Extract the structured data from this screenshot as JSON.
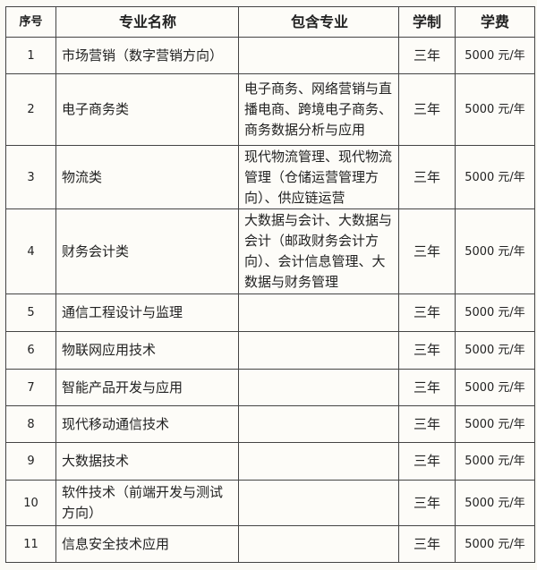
{
  "headers": [
    "序号",
    "专业名称",
    "包含专业",
    "学制",
    "学费"
  ],
  "rows": [
    {
      "no": "1",
      "name": "市场营销（数字营销方向）",
      "includes": "",
      "duration": "三年",
      "fee": "5000 元/年"
    },
    {
      "no": "2",
      "name": "电子商务类",
      "includes": "电子商务、网络营销与直播电商、跨境电子商务、商务数据分析与应用",
      "duration": "三年",
      "fee": "5000 元/年"
    },
    {
      "no": "3",
      "name": "物流类",
      "includes": "现代物流管理、现代物流管理（仓储运营管理方向）、供应链运营",
      "duration": "三年",
      "fee": "5000 元/年"
    },
    {
      "no": "4",
      "name": "财务会计类",
      "includes": "大数据与会计、大数据与会计（邮政财务会计方向）、会计信息管理、大数据与财务管理",
      "duration": "三年",
      "fee": "5000 元/年"
    },
    {
      "no": "5",
      "name": "通信工程设计与监理",
      "includes": "",
      "duration": "三年",
      "fee": "5000 元/年"
    },
    {
      "no": "6",
      "name": "物联网应用技术",
      "includes": "",
      "duration": "三年",
      "fee": "5000 元/年"
    },
    {
      "no": "7",
      "name": "智能产品开发与应用",
      "includes": "",
      "duration": "三年",
      "fee": "5000 元/年"
    },
    {
      "no": "8",
      "name": "现代移动通信技术",
      "includes": "",
      "duration": "三年",
      "fee": "5000 元/年"
    },
    {
      "no": "9",
      "name": "大数据技术",
      "includes": "",
      "duration": "三年",
      "fee": "5000 元/年"
    },
    {
      "no": "10",
      "name": "软件技术（前端开发与测试方向）",
      "includes": "",
      "duration": "三年",
      "fee": "5000 元/年"
    },
    {
      "no": "11",
      "name": "信息安全技术应用",
      "includes": "",
      "duration": "三年",
      "fee": "5000 元/年"
    }
  ]
}
